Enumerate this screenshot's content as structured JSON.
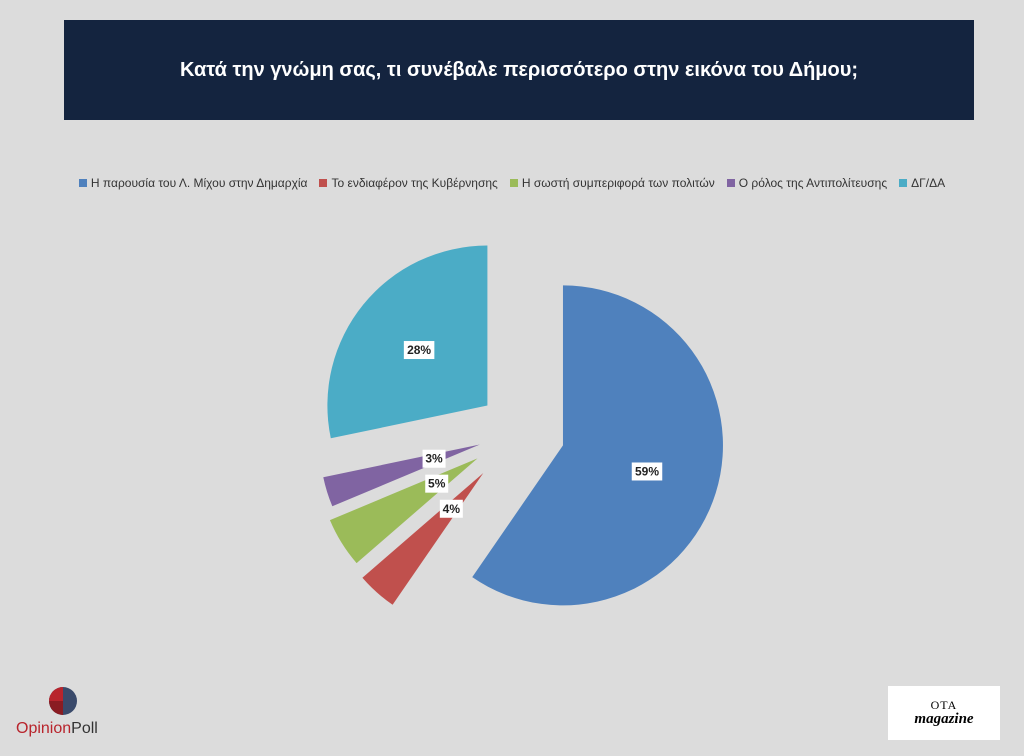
{
  "title": "Κατά την γνώμη σας, τι συνέβαλε περισσότερο στην εικόνα του Δήμου;",
  "chart_data": {
    "type": "pie",
    "title": "Κατά την γνώμη σας, τι συνέβαλε περισσότερο στην εικόνα του Δήμου;",
    "legend_position": "top",
    "exploded": true,
    "slices": [
      {
        "label": "Η παρουσία του Λ. Μίχου στην Δημαρχία",
        "value": 59,
        "display": "59%",
        "color": "#4f81bd"
      },
      {
        "label": "Το ενδιαφέρον της Κυβέρνησης",
        "value": 4,
        "display": "4%",
        "color": "#c0504d"
      },
      {
        "label": "Η σωστή συμπεριφορά των πολιτών",
        "value": 5,
        "display": "5%",
        "color": "#9bbb59"
      },
      {
        "label": "Ο ρόλος της Αντιπολίτευσης",
        "value": 3,
        "display": "3%",
        "color": "#8064a2"
      },
      {
        "label": "ΔΓ/ΔΑ",
        "value": 28,
        "display": "28%",
        "color": "#4bacc6"
      }
    ]
  },
  "logos": {
    "opinion_poll": {
      "part1": "Opinion",
      "part2": "Poll"
    },
    "ota_magazine": {
      "line1": "ΟΤΑ",
      "line2": "magazine"
    }
  }
}
